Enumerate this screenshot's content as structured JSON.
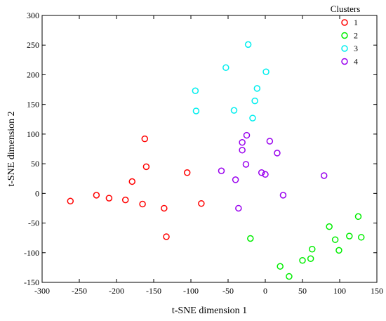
{
  "chart_data": {
    "type": "scatter",
    "xlabel": "t-SNE dimension 1",
    "ylabel": "t-SNE dimension 2",
    "xlim": [
      -300,
      150
    ],
    "ylim": [
      -150,
      300
    ],
    "xticks": [
      -300,
      -250,
      -200,
      -150,
      -100,
      -50,
      0,
      50,
      100,
      150
    ],
    "yticks": [
      -150,
      -100,
      -50,
      0,
      50,
      100,
      150,
      200,
      250,
      300
    ],
    "grid": false,
    "legend": {
      "title": "Clusters",
      "placement": "top-right"
    },
    "series": [
      {
        "name": "1",
        "color": "#ff0000",
        "points": [
          [
            -262,
            -13
          ],
          [
            -227,
            -3
          ],
          [
            -210,
            -8
          ],
          [
            -188,
            -11
          ],
          [
            -179,
            20
          ],
          [
            -165,
            -18
          ],
          [
            -162,
            92
          ],
          [
            -160,
            45
          ],
          [
            -136,
            -25
          ],
          [
            -133,
            -73
          ],
          [
            -105,
            35
          ],
          [
            -86,
            -17
          ]
        ]
      },
      {
        "name": "2",
        "color": "#00ee00",
        "points": [
          [
            -20,
            -76
          ],
          [
            20,
            -123
          ],
          [
            32,
            -140
          ],
          [
            50,
            -113
          ],
          [
            61,
            -110
          ],
          [
            63,
            -94
          ],
          [
            86,
            -56
          ],
          [
            94,
            -78
          ],
          [
            99,
            -96
          ],
          [
            113,
            -72
          ],
          [
            125,
            -39
          ],
          [
            129,
            -74
          ]
        ]
      },
      {
        "name": "3",
        "color": "#00eeee",
        "points": [
          [
            -23,
            251
          ],
          [
            -53,
            212
          ],
          [
            1,
            205
          ],
          [
            -94,
            173
          ],
          [
            -11,
            177
          ],
          [
            -93,
            139
          ],
          [
            -42,
            140
          ],
          [
            -14,
            156
          ],
          [
            -17,
            127
          ]
        ]
      },
      {
        "name": "4",
        "color": "#9900ee",
        "points": [
          [
            -25,
            98
          ],
          [
            -31,
            86
          ],
          [
            6,
            88
          ],
          [
            -31,
            73
          ],
          [
            16,
            68
          ],
          [
            -26,
            49
          ],
          [
            -59,
            38
          ],
          [
            -5,
            35
          ],
          [
            0,
            32
          ],
          [
            -40,
            23
          ],
          [
            79,
            30
          ],
          [
            24,
            -3
          ],
          [
            -36,
            -25
          ]
        ]
      }
    ]
  }
}
